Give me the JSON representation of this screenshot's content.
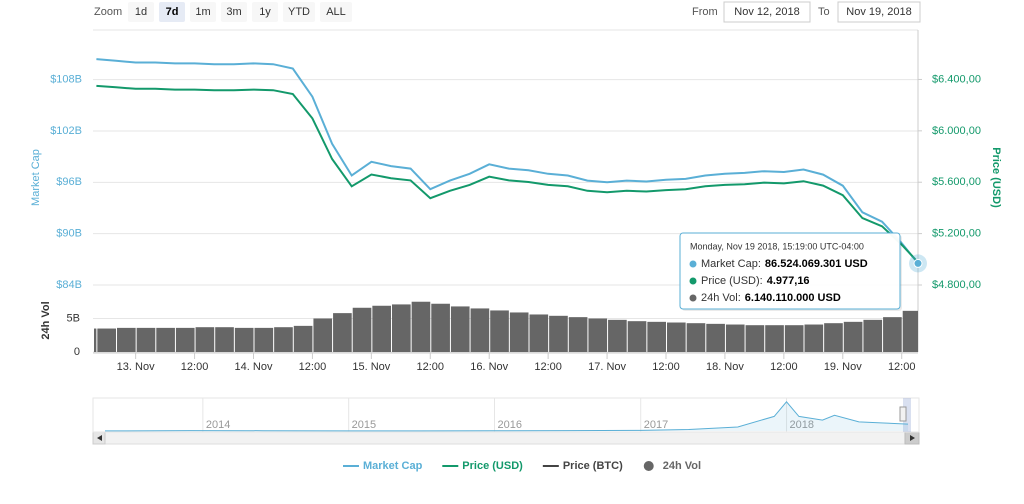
{
  "zoom": {
    "label": "Zoom",
    "buttons": [
      "1d",
      "7d",
      "1m",
      "3m",
      "1y",
      "YTD",
      "ALL"
    ],
    "selected": "7d"
  },
  "range": {
    "from_label": "From",
    "from": "Nov 12, 2018",
    "to_label": "To",
    "to": "Nov 19, 2018"
  },
  "chart_data": {
    "type": "line",
    "x": [
      "2018-11-12T16:00",
      "2018-11-12T20:00",
      "2018-11-13T00:00",
      "2018-11-13T04:00",
      "2018-11-13T08:00",
      "2018-11-13T12:00",
      "2018-11-13T16:00",
      "2018-11-13T20:00",
      "2018-11-14T00:00",
      "2018-11-14T04:00",
      "2018-11-14T08:00",
      "2018-11-14T12:00",
      "2018-11-14T16:00",
      "2018-11-14T20:00",
      "2018-11-15T00:00",
      "2018-11-15T04:00",
      "2018-11-15T08:00",
      "2018-11-15T12:00",
      "2018-11-15T16:00",
      "2018-11-15T20:00",
      "2018-11-16T00:00",
      "2018-11-16T04:00",
      "2018-11-16T08:00",
      "2018-11-16T12:00",
      "2018-11-16T16:00",
      "2018-11-16T20:00",
      "2018-11-17T00:00",
      "2018-11-17T04:00",
      "2018-11-17T08:00",
      "2018-11-17T12:00",
      "2018-11-17T16:00",
      "2018-11-17T20:00",
      "2018-11-18T00:00",
      "2018-11-18T04:00",
      "2018-11-18T08:00",
      "2018-11-18T12:00",
      "2018-11-18T16:00",
      "2018-11-18T20:00",
      "2018-11-19T00:00",
      "2018-11-19T04:00",
      "2018-11-19T08:00",
      "2018-11-19T12:00",
      "2018-11-19T15:19"
    ],
    "xlim": [
      "2018-11-12T15:19",
      "2018-11-19T15:19"
    ],
    "xticks": [
      {
        "value": "2018-11-13T00:00",
        "label": "13. Nov"
      },
      {
        "value": "2018-11-13T12:00",
        "label": "12:00"
      },
      {
        "value": "2018-11-14T00:00",
        "label": "14. Nov"
      },
      {
        "value": "2018-11-14T12:00",
        "label": "12:00"
      },
      {
        "value": "2018-11-15T00:00",
        "label": "15. Nov"
      },
      {
        "value": "2018-11-15T12:00",
        "label": "12:00"
      },
      {
        "value": "2018-11-16T00:00",
        "label": "16. Nov"
      },
      {
        "value": "2018-11-16T12:00",
        "label": "12:00"
      },
      {
        "value": "2018-11-17T00:00",
        "label": "17. Nov"
      },
      {
        "value": "2018-11-17T12:00",
        "label": "12:00"
      },
      {
        "value": "2018-11-18T00:00",
        "label": "18. Nov"
      },
      {
        "value": "2018-11-18T12:00",
        "label": "12:00"
      },
      {
        "value": "2018-11-19T00:00",
        "label": "19. Nov"
      },
      {
        "value": "2018-11-19T12:00",
        "label": "12:00"
      }
    ],
    "ylabel": "Market Cap",
    "ylim": [
      84,
      113.8
    ],
    "yticks": [
      {
        "value": 84,
        "label": "$84B"
      },
      {
        "value": 90,
        "label": "$90B"
      },
      {
        "value": 96,
        "label": "$96B"
      },
      {
        "value": 102,
        "label": "$102B"
      },
      {
        "value": 108,
        "label": "$108B"
      }
    ],
    "y2label": "Price (USD)",
    "y2lim": [
      4800,
      6785
    ],
    "y2ticks": [
      {
        "value": 4800,
        "label": "$4.800,00"
      },
      {
        "value": 5200,
        "label": "$5.200,00"
      },
      {
        "value": 5600,
        "label": "$5.600,00"
      },
      {
        "value": 6000,
        "label": "$6.000,00"
      },
      {
        "value": 6400,
        "label": "$6.400,00"
      }
    ],
    "grid": true,
    "series": [
      {
        "name": "Market Cap",
        "color": "#5aafd6",
        "values": [
          110.4,
          110.2,
          110.0,
          110.0,
          109.9,
          109.9,
          109.8,
          109.8,
          109.9,
          109.8,
          109.3,
          106.0,
          100.5,
          96.8,
          98.4,
          97.9,
          97.6,
          95.2,
          96.2,
          97.0,
          98.1,
          97.6,
          97.4,
          97.0,
          96.8,
          96.2,
          96.0,
          96.2,
          96.1,
          96.3,
          96.4,
          96.8,
          97.0,
          97.1,
          97.3,
          97.2,
          97.5,
          96.9,
          95.6,
          92.5,
          91.4,
          88.9,
          86.524
        ]
      },
      {
        "name": "Price (USD)",
        "color": "#13996b",
        "axis": "y2",
        "values": [
          6350,
          6339,
          6327,
          6327,
          6321,
          6321,
          6316,
          6316,
          6321,
          6316,
          6287,
          6097,
          5781,
          5568,
          5660,
          5631,
          5614,
          5476,
          5533,
          5579,
          5643,
          5614,
          5602,
          5579,
          5568,
          5533,
          5522,
          5533,
          5528,
          5539,
          5545,
          5568,
          5579,
          5585,
          5597,
          5591,
          5608,
          5574,
          5499,
          5321,
          5257,
          5114,
          4977.16
        ]
      },
      {
        "name": "Price (BTC)",
        "color": "#444444",
        "hidden": true
      }
    ],
    "volume": {
      "name": "24h Vol",
      "color": "#666666",
      "ylim": [
        0,
        9.4
      ],
      "yticks": [
        0,
        {
          "value": 5,
          "label": "5B"
        }
      ],
      "values": [
        3.5,
        3.5,
        3.6,
        3.6,
        3.6,
        3.6,
        3.7,
        3.7,
        3.6,
        3.6,
        3.7,
        3.9,
        5.0,
        5.8,
        6.6,
        6.9,
        7.1,
        7.5,
        7.2,
        6.8,
        6.5,
        6.2,
        5.9,
        5.6,
        5.4,
        5.2,
        5.0,
        4.8,
        4.6,
        4.5,
        4.4,
        4.3,
        4.2,
        4.1,
        4.0,
        4.0,
        4.0,
        4.1,
        4.3,
        4.5,
        4.8,
        5.2,
        6.14
      ]
    },
    "tooltip": {
      "title": "Monday, Nov 19 2018, 15:19:00 UTC-04:00",
      "items": [
        {
          "label": "Market Cap:",
          "value": "86.524.069.301 USD"
        },
        {
          "label": "Price (USD):",
          "value": "4.977,16"
        },
        {
          "label": "24h Vol:",
          "value": "6.140.110.000 USD"
        }
      ]
    },
    "navigator": {
      "xlim": [
        "2013-04",
        "2018-11"
      ],
      "ylim": [
        0,
        850
      ],
      "x": [
        "2013-05",
        "2013-12",
        "2014-06",
        "2015-01",
        "2015-07",
        "2016-01",
        "2016-07",
        "2017-01",
        "2017-05",
        "2017-09",
        "2017-12",
        "2018-01",
        "2018-02",
        "2018-04",
        "2018-05",
        "2018-07",
        "2018-09",
        "2018-11"
      ],
      "values": [
        1.5,
        12,
        8,
        4,
        4,
        6,
        11,
        17,
        40,
        110,
        400,
        800,
        400,
        300,
        430,
        250,
        220,
        190
      ],
      "xticks": [
        {
          "value": "2014-01",
          "label": "2014"
        },
        {
          "value": "2015-01",
          "label": "2015"
        },
        {
          "value": "2016-01",
          "label": "2016"
        },
        {
          "value": "2017-01",
          "label": "2017"
        },
        {
          "value": "2018-01",
          "label": "2018"
        }
      ]
    }
  }
}
